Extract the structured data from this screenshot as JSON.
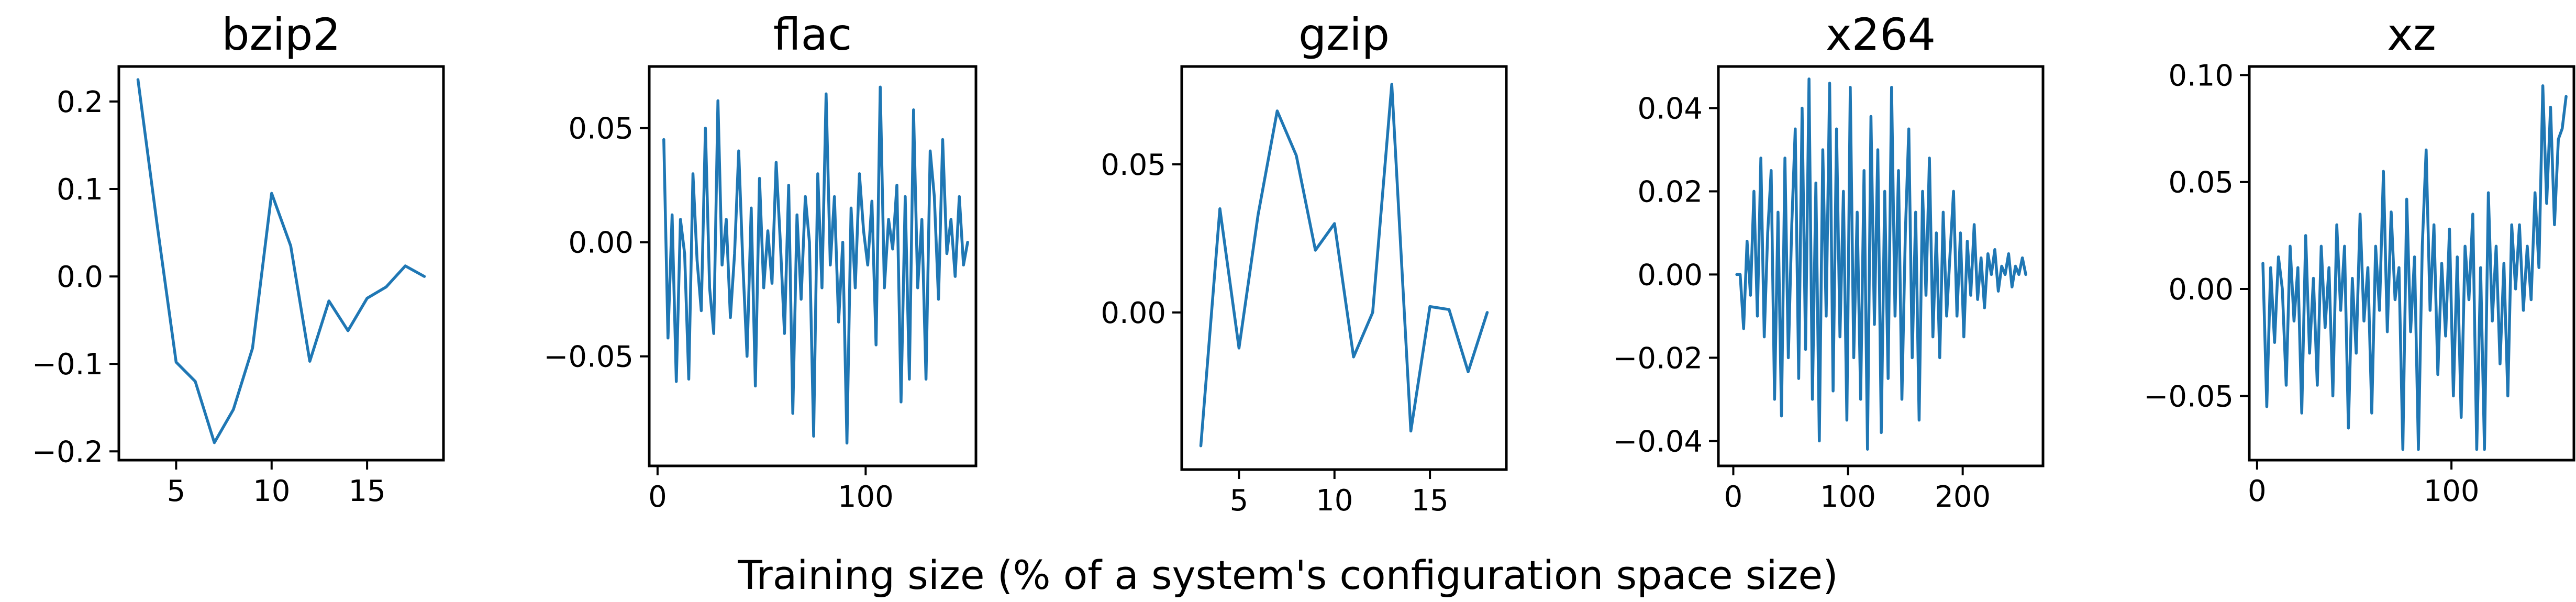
{
  "figure": {
    "xlabel": "Training size (% of a system's configuration space size)"
  },
  "colors": {
    "series": "#1f77b4"
  },
  "chart_data": [
    {
      "type": "line",
      "title": "bzip2",
      "xlim": [
        2,
        19
      ],
      "ylim": [
        -0.21,
        0.24
      ],
      "xticks": [
        5,
        10,
        15
      ],
      "xtick_labels": [
        "5",
        "10",
        "15"
      ],
      "yticks": [
        -0.2,
        -0.1,
        0.0,
        0.1,
        0.2
      ],
      "ytick_labels": [
        "−0.2",
        "−0.1",
        "0.0",
        "0.1",
        "0.2"
      ],
      "x": [
        3,
        4,
        5,
        6,
        7,
        8,
        9,
        10,
        11,
        12,
        13,
        14,
        15,
        16,
        17,
        18
      ],
      "y": [
        0.225,
        0.06,
        -0.098,
        -0.12,
        -0.19,
        -0.152,
        -0.082,
        0.095,
        0.035,
        -0.097,
        -0.028,
        -0.062,
        -0.025,
        -0.012,
        0.012,
        0.0
      ]
    },
    {
      "type": "line",
      "title": "flac",
      "xlim": [
        -4,
        153
      ],
      "ylim": [
        -0.098,
        0.077
      ],
      "xticks": [
        0,
        100
      ],
      "xtick_labels": [
        "0",
        "100"
      ],
      "yticks": [
        -0.05,
        0.0,
        0.05
      ],
      "ytick_labels": [
        "−0.05",
        "0.00",
        "0.05"
      ],
      "x": [
        3,
        5,
        7,
        9,
        11,
        13,
        15,
        17,
        19,
        21,
        23,
        25,
        27,
        29,
        31,
        33,
        35,
        37,
        39,
        41,
        43,
        45,
        47,
        49,
        51,
        53,
        55,
        57,
        59,
        61,
        63,
        65,
        67,
        69,
        71,
        73,
        75,
        77,
        79,
        81,
        83,
        85,
        87,
        89,
        91,
        93,
        95,
        97,
        99,
        101,
        103,
        105,
        107,
        109,
        111,
        113,
        115,
        117,
        119,
        121,
        123,
        125,
        127,
        129,
        131,
        133,
        135,
        137,
        139,
        141,
        143,
        145,
        147,
        149
      ],
      "y": [
        0.045,
        -0.042,
        0.012,
        -0.061,
        0.01,
        -0.005,
        -0.06,
        0.03,
        -0.008,
        -0.03,
        0.05,
        -0.02,
        -0.04,
        0.062,
        -0.01,
        0.01,
        -0.033,
        -0.005,
        0.04,
        -0.01,
        -0.05,
        0.015,
        -0.063,
        0.028,
        -0.02,
        0.005,
        -0.018,
        0.035,
        0.0,
        -0.04,
        0.025,
        -0.075,
        0.012,
        -0.025,
        0.02,
        0.0,
        -0.085,
        0.03,
        -0.02,
        0.065,
        -0.01,
        0.02,
        -0.035,
        0.0,
        -0.088,
        0.015,
        -0.02,
        0.03,
        0.005,
        -0.01,
        0.018,
        -0.045,
        0.068,
        -0.02,
        0.01,
        -0.003,
        0.025,
        -0.07,
        0.02,
        -0.06,
        0.058,
        -0.02,
        0.01,
        -0.06,
        0.04,
        0.02,
        -0.025,
        0.045,
        -0.005,
        0.01,
        -0.015,
        0.02,
        -0.01,
        0.0
      ]
    },
    {
      "type": "line",
      "title": "gzip",
      "xlim": [
        2,
        19
      ],
      "ylim": [
        -0.053,
        0.083
      ],
      "xticks": [
        5,
        10,
        15
      ],
      "xtick_labels": [
        "5",
        "10",
        "15"
      ],
      "yticks": [
        0.0,
        0.05
      ],
      "ytick_labels": [
        "0.00",
        "0.05"
      ],
      "x": [
        3,
        4,
        5,
        6,
        7,
        8,
        9,
        10,
        11,
        12,
        13,
        14,
        15,
        16,
        17,
        18
      ],
      "y": [
        -0.045,
        0.035,
        -0.012,
        0.033,
        0.068,
        0.053,
        0.021,
        0.03,
        -0.015,
        -0.0,
        0.077,
        -0.04,
        0.002,
        0.001,
        -0.02,
        0.0
      ]
    },
    {
      "type": "line",
      "title": "x264",
      "xlim": [
        -13,
        270
      ],
      "ylim": [
        -0.046,
        0.05
      ],
      "xticks": [
        0,
        100,
        200
      ],
      "xtick_labels": [
        "0",
        "100",
        "200"
      ],
      "yticks": [
        -0.04,
        -0.02,
        0.0,
        0.02,
        0.04
      ],
      "ytick_labels": [
        "−0.04",
        "−0.02",
        "0.00",
        "0.02",
        "0.04"
      ],
      "x": [
        3,
        6,
        9,
        12,
        15,
        18,
        21,
        24,
        27,
        30,
        33,
        36,
        39,
        42,
        45,
        48,
        51,
        54,
        57,
        60,
        63,
        66,
        69,
        72,
        75,
        78,
        81,
        84,
        87,
        90,
        93,
        96,
        99,
        102,
        105,
        108,
        111,
        114,
        117,
        120,
        123,
        126,
        129,
        132,
        135,
        138,
        141,
        144,
        147,
        150,
        153,
        156,
        159,
        162,
        165,
        168,
        171,
        174,
        177,
        180,
        183,
        186,
        189,
        192,
        195,
        198,
        201,
        204,
        207,
        210,
        213,
        216,
        219,
        222,
        225,
        228,
        231,
        234,
        237,
        240,
        243,
        246,
        249,
        252,
        255
      ],
      "y": [
        0.0,
        0.0,
        -0.013,
        0.008,
        -0.005,
        0.02,
        -0.01,
        0.028,
        -0.015,
        0.01,
        0.025,
        -0.03,
        0.015,
        -0.034,
        0.028,
        -0.02,
        0.012,
        0.035,
        -0.025,
        0.04,
        -0.018,
        0.047,
        -0.03,
        0.022,
        -0.04,
        0.03,
        -0.01,
        0.046,
        -0.028,
        0.035,
        -0.015,
        0.02,
        -0.035,
        0.045,
        -0.02,
        0.015,
        -0.03,
        0.025,
        -0.042,
        0.038,
        -0.012,
        0.03,
        -0.038,
        0.02,
        -0.025,
        0.045,
        -0.01,
        0.025,
        -0.03,
        0.01,
        0.035,
        -0.02,
        0.015,
        -0.035,
        0.02,
        -0.005,
        0.028,
        -0.015,
        0.01,
        -0.02,
        0.015,
        -0.01,
        0.005,
        0.02,
        -0.01,
        0.01,
        -0.015,
        0.008,
        -0.005,
        0.012,
        -0.006,
        0.004,
        -0.008,
        0.005,
        0.0,
        0.006,
        -0.004,
        0.002,
        0.0,
        0.005,
        -0.003,
        0.002,
        0.0,
        0.004,
        0.0
      ]
    },
    {
      "type": "line",
      "title": "xz",
      "xlim": [
        -4,
        163
      ],
      "ylim": [
        -0.08,
        0.104
      ],
      "xticks": [
        0,
        100
      ],
      "xtick_labels": [
        "0",
        "100"
      ],
      "yticks": [
        -0.05,
        0.0,
        0.05,
        0.1
      ],
      "ytick_labels": [
        "−0.05",
        "0.00",
        "0.05",
        "0.10"
      ],
      "x": [
        3,
        5,
        7,
        9,
        11,
        13,
        15,
        17,
        19,
        21,
        23,
        25,
        27,
        29,
        31,
        33,
        35,
        37,
        39,
        41,
        43,
        45,
        47,
        49,
        51,
        53,
        55,
        57,
        59,
        61,
        63,
        65,
        67,
        69,
        71,
        73,
        75,
        77,
        79,
        81,
        83,
        85,
        87,
        89,
        91,
        93,
        95,
        97,
        99,
        101,
        103,
        105,
        107,
        109,
        111,
        113,
        115,
        117,
        119,
        121,
        123,
        125,
        127,
        129,
        131,
        133,
        135,
        137,
        139,
        141,
        143,
        145,
        147,
        149,
        151,
        153,
        155,
        157,
        159
      ],
      "y": [
        0.012,
        -0.055,
        0.01,
        -0.025,
        0.015,
        0.0,
        -0.045,
        0.02,
        -0.015,
        0.01,
        -0.058,
        0.025,
        -0.03,
        0.005,
        -0.045,
        0.02,
        -0.018,
        0.01,
        -0.05,
        0.03,
        -0.01,
        0.02,
        -0.065,
        0.005,
        -0.03,
        0.035,
        -0.015,
        0.01,
        -0.058,
        0.02,
        -0.01,
        0.055,
        -0.02,
        0.036,
        -0.005,
        0.01,
        -0.075,
        0.042,
        -0.02,
        0.015,
        -0.075,
        0.02,
        0.065,
        -0.01,
        0.03,
        -0.04,
        0.012,
        -0.022,
        0.028,
        -0.05,
        0.015,
        -0.06,
        0.02,
        -0.005,
        0.035,
        -0.075,
        0.01,
        -0.075,
        0.045,
        -0.015,
        0.02,
        -0.035,
        0.012,
        -0.05,
        0.03,
        0.0,
        0.03,
        -0.01,
        0.02,
        -0.005,
        0.045,
        0.01,
        0.095,
        0.04,
        0.085,
        0.03,
        0.07,
        0.075,
        0.09
      ]
    }
  ]
}
